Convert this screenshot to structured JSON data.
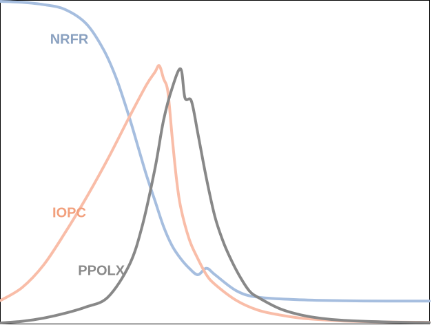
{
  "chart_data": {
    "type": "line",
    "title": "",
    "xlabel": "",
    "ylabel": "",
    "xlim": [
      0,
      100
    ],
    "ylim": [
      0,
      1
    ],
    "grid": false,
    "legend": "none",
    "series": [
      {
        "name": "NRFR",
        "color": "#a6bedf",
        "label_color": "#8aa1c0",
        "label_at": {
          "x": 16,
          "y": 0.88
        },
        "x": [
          0,
          5,
          10,
          15,
          20,
          24,
          27,
          30,
          32,
          34,
          36,
          38,
          40,
          42,
          44,
          46,
          48,
          50,
          55,
          60,
          70,
          80,
          90,
          100
        ],
        "y": [
          1.0,
          0.997,
          0.99,
          0.975,
          0.93,
          0.85,
          0.76,
          0.64,
          0.55,
          0.46,
          0.38,
          0.3,
          0.24,
          0.2,
          0.17,
          0.15,
          0.17,
          0.15,
          0.1,
          0.08,
          0.072,
          0.069,
          0.068,
          0.068
        ]
      },
      {
        "name": "IOPC",
        "color": "#f9bda8",
        "label_color": "#f2a07d",
        "label_at": {
          "x": 16,
          "y": 0.34
        },
        "x": [
          0,
          5,
          10,
          15,
          20,
          25,
          30,
          34,
          36,
          37,
          38,
          39,
          40,
          41,
          42,
          44,
          46,
          48,
          50,
          55,
          60,
          65,
          70,
          75,
          80,
          90,
          100
        ],
        "y": [
          0.07,
          0.11,
          0.18,
          0.28,
          0.39,
          0.51,
          0.64,
          0.74,
          0.78,
          0.8,
          0.76,
          0.72,
          0.58,
          0.45,
          0.36,
          0.26,
          0.2,
          0.15,
          0.12,
          0.07,
          0.04,
          0.025,
          0.015,
          0.01,
          0.006,
          0.003,
          0.002
        ]
      },
      {
        "name": "PPOLX",
        "color": "#888888",
        "label_color": "#8a8a8a",
        "label_at": {
          "x": 23.5,
          "y": 0.16
        },
        "x": [
          0,
          5,
          10,
          15,
          20,
          25,
          30,
          33,
          36,
          38,
          40,
          42,
          43,
          44.5,
          46,
          48,
          50,
          52,
          54,
          56,
          58,
          60,
          65,
          70,
          75,
          80,
          90,
          100
        ],
        "y": [
          0.0,
          0.005,
          0.015,
          0.03,
          0.05,
          0.08,
          0.18,
          0.3,
          0.48,
          0.63,
          0.73,
          0.79,
          0.7,
          0.69,
          0.59,
          0.45,
          0.33,
          0.25,
          0.19,
          0.14,
          0.1,
          0.08,
          0.045,
          0.025,
          0.014,
          0.008,
          0.003,
          0.001
        ]
      }
    ]
  }
}
